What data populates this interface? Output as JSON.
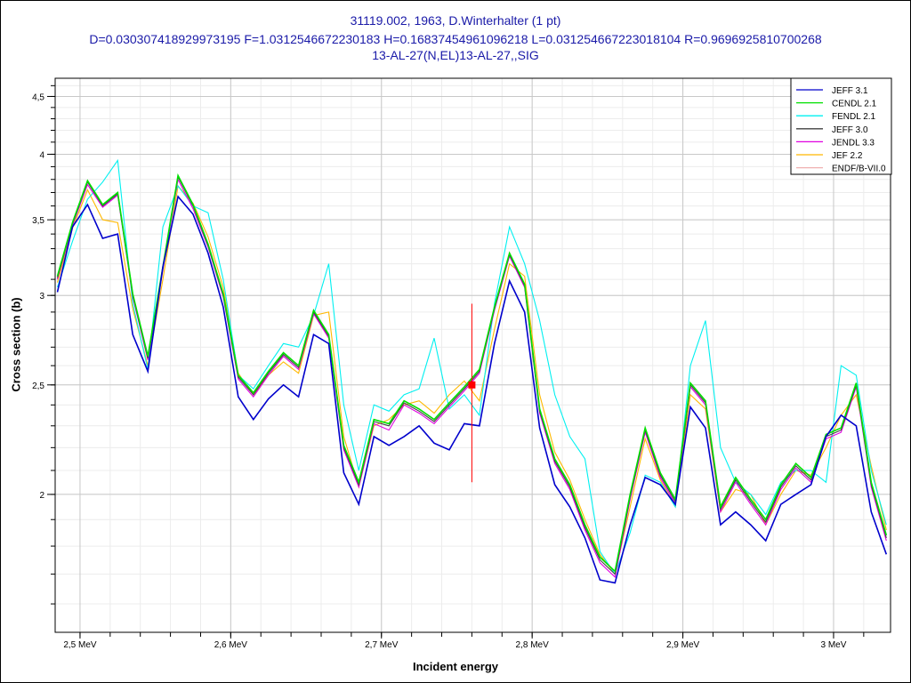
{
  "header": {
    "line1": "31119.002, 1963, D.Winterhalter (1 pt)",
    "line2": "D=0.030307418929973195 F=1.0312546672230183 H=0.16837454961096218 L=0.031254667223018104 R=0.9696925810700268",
    "line3": "13-AL-27(N,EL)13-AL-27,,SIG"
  },
  "chart_data": {
    "type": "line",
    "title": "31119.002, 1963, D.Winterhalter (1 pt)",
    "xlabel": "Incident energy",
    "ylabel": "Cross section (b)",
    "x_unit": "MeV",
    "xlim": [
      2.4835,
      3.0378
    ],
    "ylim": [
      1.51,
      4.67
    ],
    "y_scale": "log",
    "grid": true,
    "legend_position": "top-right",
    "x_ticks": [
      2.5,
      2.6,
      2.7,
      2.8,
      2.9,
      3.0
    ],
    "x_tick_labels": [
      "2,5 MeV",
      "2,6 MeV",
      "2,7 MeV",
      "2,8 MeV",
      "2,9 MeV",
      "3 MeV"
    ],
    "y_ticks": [
      2,
      2.5,
      3,
      3.5,
      4,
      4.5
    ],
    "y_tick_labels": [
      "2",
      "2,5",
      "3",
      "3,5",
      "4",
      "4,5"
    ],
    "x": [
      2.485,
      2.495,
      2.505,
      2.515,
      2.525,
      2.535,
      2.545,
      2.555,
      2.565,
      2.575,
      2.585,
      2.595,
      2.605,
      2.615,
      2.625,
      2.635,
      2.645,
      2.655,
      2.665,
      2.675,
      2.685,
      2.695,
      2.705,
      2.715,
      2.725,
      2.735,
      2.745,
      2.755,
      2.765,
      2.775,
      2.785,
      2.795,
      2.805,
      2.815,
      2.825,
      2.835,
      2.845,
      2.855,
      2.865,
      2.875,
      2.885,
      2.895,
      2.905,
      2.915,
      2.925,
      2.935,
      2.945,
      2.955,
      2.965,
      2.975,
      2.985,
      2.995,
      3.005,
      3.015,
      3.025,
      3.035
    ],
    "series": [
      {
        "name": "JEFF 3.1",
        "color": "#0000cc",
        "values": [
          3.02,
          3.45,
          3.61,
          3.37,
          3.4,
          2.77,
          2.57,
          3.18,
          3.67,
          3.54,
          3.27,
          2.93,
          2.44,
          2.33,
          2.43,
          2.5,
          2.44,
          2.77,
          2.72,
          2.09,
          1.96,
          2.25,
          2.21,
          2.25,
          2.3,
          2.22,
          2.19,
          2.31,
          2.3,
          2.72,
          3.09,
          2.9,
          2.29,
          2.04,
          1.95,
          1.83,
          1.68,
          1.67,
          1.88,
          2.07,
          2.04,
          1.96,
          2.39,
          2.29,
          1.88,
          1.93,
          1.88,
          1.82,
          1.96,
          2.0,
          2.04,
          2.25,
          2.35,
          2.3,
          1.93,
          1.77
        ]
      },
      {
        "name": "CENDL 2.1",
        "color": "#00e000",
        "values": [
          3.12,
          3.48,
          3.79,
          3.61,
          3.7,
          3.01,
          2.65,
          3.18,
          3.83,
          3.61,
          3.33,
          3.01,
          2.55,
          2.46,
          2.57,
          2.67,
          2.6,
          2.91,
          2.77,
          2.21,
          2.05,
          2.33,
          2.31,
          2.42,
          2.38,
          2.33,
          2.41,
          2.49,
          2.58,
          2.93,
          3.27,
          3.07,
          2.38,
          2.15,
          2.04,
          1.88,
          1.76,
          1.71,
          2.0,
          2.29,
          2.09,
          1.98,
          2.51,
          2.42,
          1.95,
          2.07,
          1.98,
          1.9,
          2.04,
          2.13,
          2.07,
          2.26,
          2.29,
          2.51,
          2.05,
          1.84
        ]
      },
      {
        "name": "FENDL 2.1",
        "color": "#00f0f0",
        "values": [
          3.05,
          3.35,
          3.65,
          3.78,
          3.95,
          2.95,
          2.58,
          3.45,
          3.75,
          3.6,
          3.55,
          3.1,
          2.55,
          2.48,
          2.6,
          2.72,
          2.7,
          2.88,
          3.2,
          2.4,
          2.1,
          2.4,
          2.37,
          2.45,
          2.48,
          2.75,
          2.38,
          2.45,
          2.35,
          2.95,
          3.45,
          3.2,
          2.85,
          2.45,
          2.25,
          2.15,
          1.78,
          1.7,
          1.85,
          2.08,
          2.05,
          1.95,
          2.6,
          2.85,
          2.2,
          2.05,
          2.0,
          1.92,
          2.05,
          2.1,
          2.1,
          2.05,
          2.6,
          2.55,
          2.1,
          1.88
        ]
      },
      {
        "name": "JEFF 3.0",
        "color": "#404040",
        "values": [
          3.11,
          3.47,
          3.78,
          3.6,
          3.69,
          3.0,
          2.64,
          3.17,
          3.82,
          3.6,
          3.32,
          3.0,
          2.54,
          2.45,
          2.56,
          2.66,
          2.59,
          2.9,
          2.76,
          2.2,
          2.04,
          2.32,
          2.3,
          2.41,
          2.37,
          2.32,
          2.4,
          2.48,
          2.57,
          2.92,
          3.26,
          3.06,
          2.37,
          2.14,
          2.03,
          1.87,
          1.75,
          1.7,
          1.99,
          2.28,
          2.08,
          1.97,
          2.5,
          2.41,
          1.94,
          2.06,
          1.97,
          1.89,
          2.03,
          2.12,
          2.06,
          2.25,
          2.28,
          2.5,
          2.04,
          1.83
        ]
      },
      {
        "name": "JENDL 3.3",
        "color": "#e000e0",
        "values": [
          3.1,
          3.46,
          3.76,
          3.59,
          3.68,
          2.99,
          2.63,
          3.16,
          3.8,
          3.58,
          3.31,
          2.99,
          2.53,
          2.44,
          2.55,
          2.65,
          2.58,
          2.89,
          2.75,
          2.19,
          2.03,
          2.31,
          2.28,
          2.4,
          2.36,
          2.31,
          2.39,
          2.47,
          2.56,
          2.91,
          3.25,
          3.05,
          2.36,
          2.13,
          2.02,
          1.86,
          1.74,
          1.69,
          1.98,
          2.27,
          2.07,
          1.96,
          2.49,
          2.4,
          1.93,
          2.05,
          1.96,
          1.88,
          2.02,
          2.11,
          2.05,
          2.24,
          2.27,
          2.49,
          2.03,
          1.82
        ]
      },
      {
        "name": "JEF 2.2",
        "color": "#ffb800",
        "values": [
          3.08,
          3.44,
          3.72,
          3.5,
          3.48,
          2.92,
          2.6,
          3.1,
          3.75,
          3.62,
          3.38,
          3.05,
          2.56,
          2.45,
          2.55,
          2.62,
          2.56,
          2.88,
          2.9,
          2.25,
          2.03,
          2.3,
          2.33,
          2.4,
          2.42,
          2.36,
          2.45,
          2.52,
          2.42,
          2.8,
          3.2,
          3.12,
          2.45,
          2.18,
          2.06,
          1.9,
          1.77,
          1.7,
          1.95,
          2.24,
          2.06,
          1.95,
          2.45,
          2.38,
          1.93,
          2.02,
          2.0,
          1.88,
          2.0,
          2.1,
          2.08,
          2.2,
          2.35,
          2.45,
          2.12,
          1.86
        ]
      },
      {
        "name": "ENDF/B-VII.0",
        "color": "#f0b0b0",
        "values": [
          3.12,
          3.48,
          3.79,
          3.61,
          3.7,
          3.01,
          2.65,
          3.18,
          3.83,
          3.61,
          3.33,
          3.01,
          2.55,
          2.46,
          2.57,
          2.67,
          2.6,
          2.91,
          2.77,
          2.21,
          2.05,
          2.33,
          2.31,
          2.42,
          2.38,
          2.33,
          2.41,
          2.49,
          2.58,
          2.93,
          3.27,
          3.07,
          2.38,
          2.15,
          2.04,
          1.88,
          1.76,
          1.71,
          2.0,
          2.29,
          2.09,
          1.98,
          2.51,
          2.42,
          1.95,
          2.07,
          1.98,
          1.9,
          2.04,
          2.13,
          2.07,
          2.26,
          2.29,
          2.51,
          2.05,
          1.84
        ]
      }
    ],
    "experimental_points": [
      {
        "x": 2.76,
        "y": 2.5,
        "y_low": 2.05,
        "y_high": 2.95,
        "color": "#ff0000"
      }
    ]
  }
}
